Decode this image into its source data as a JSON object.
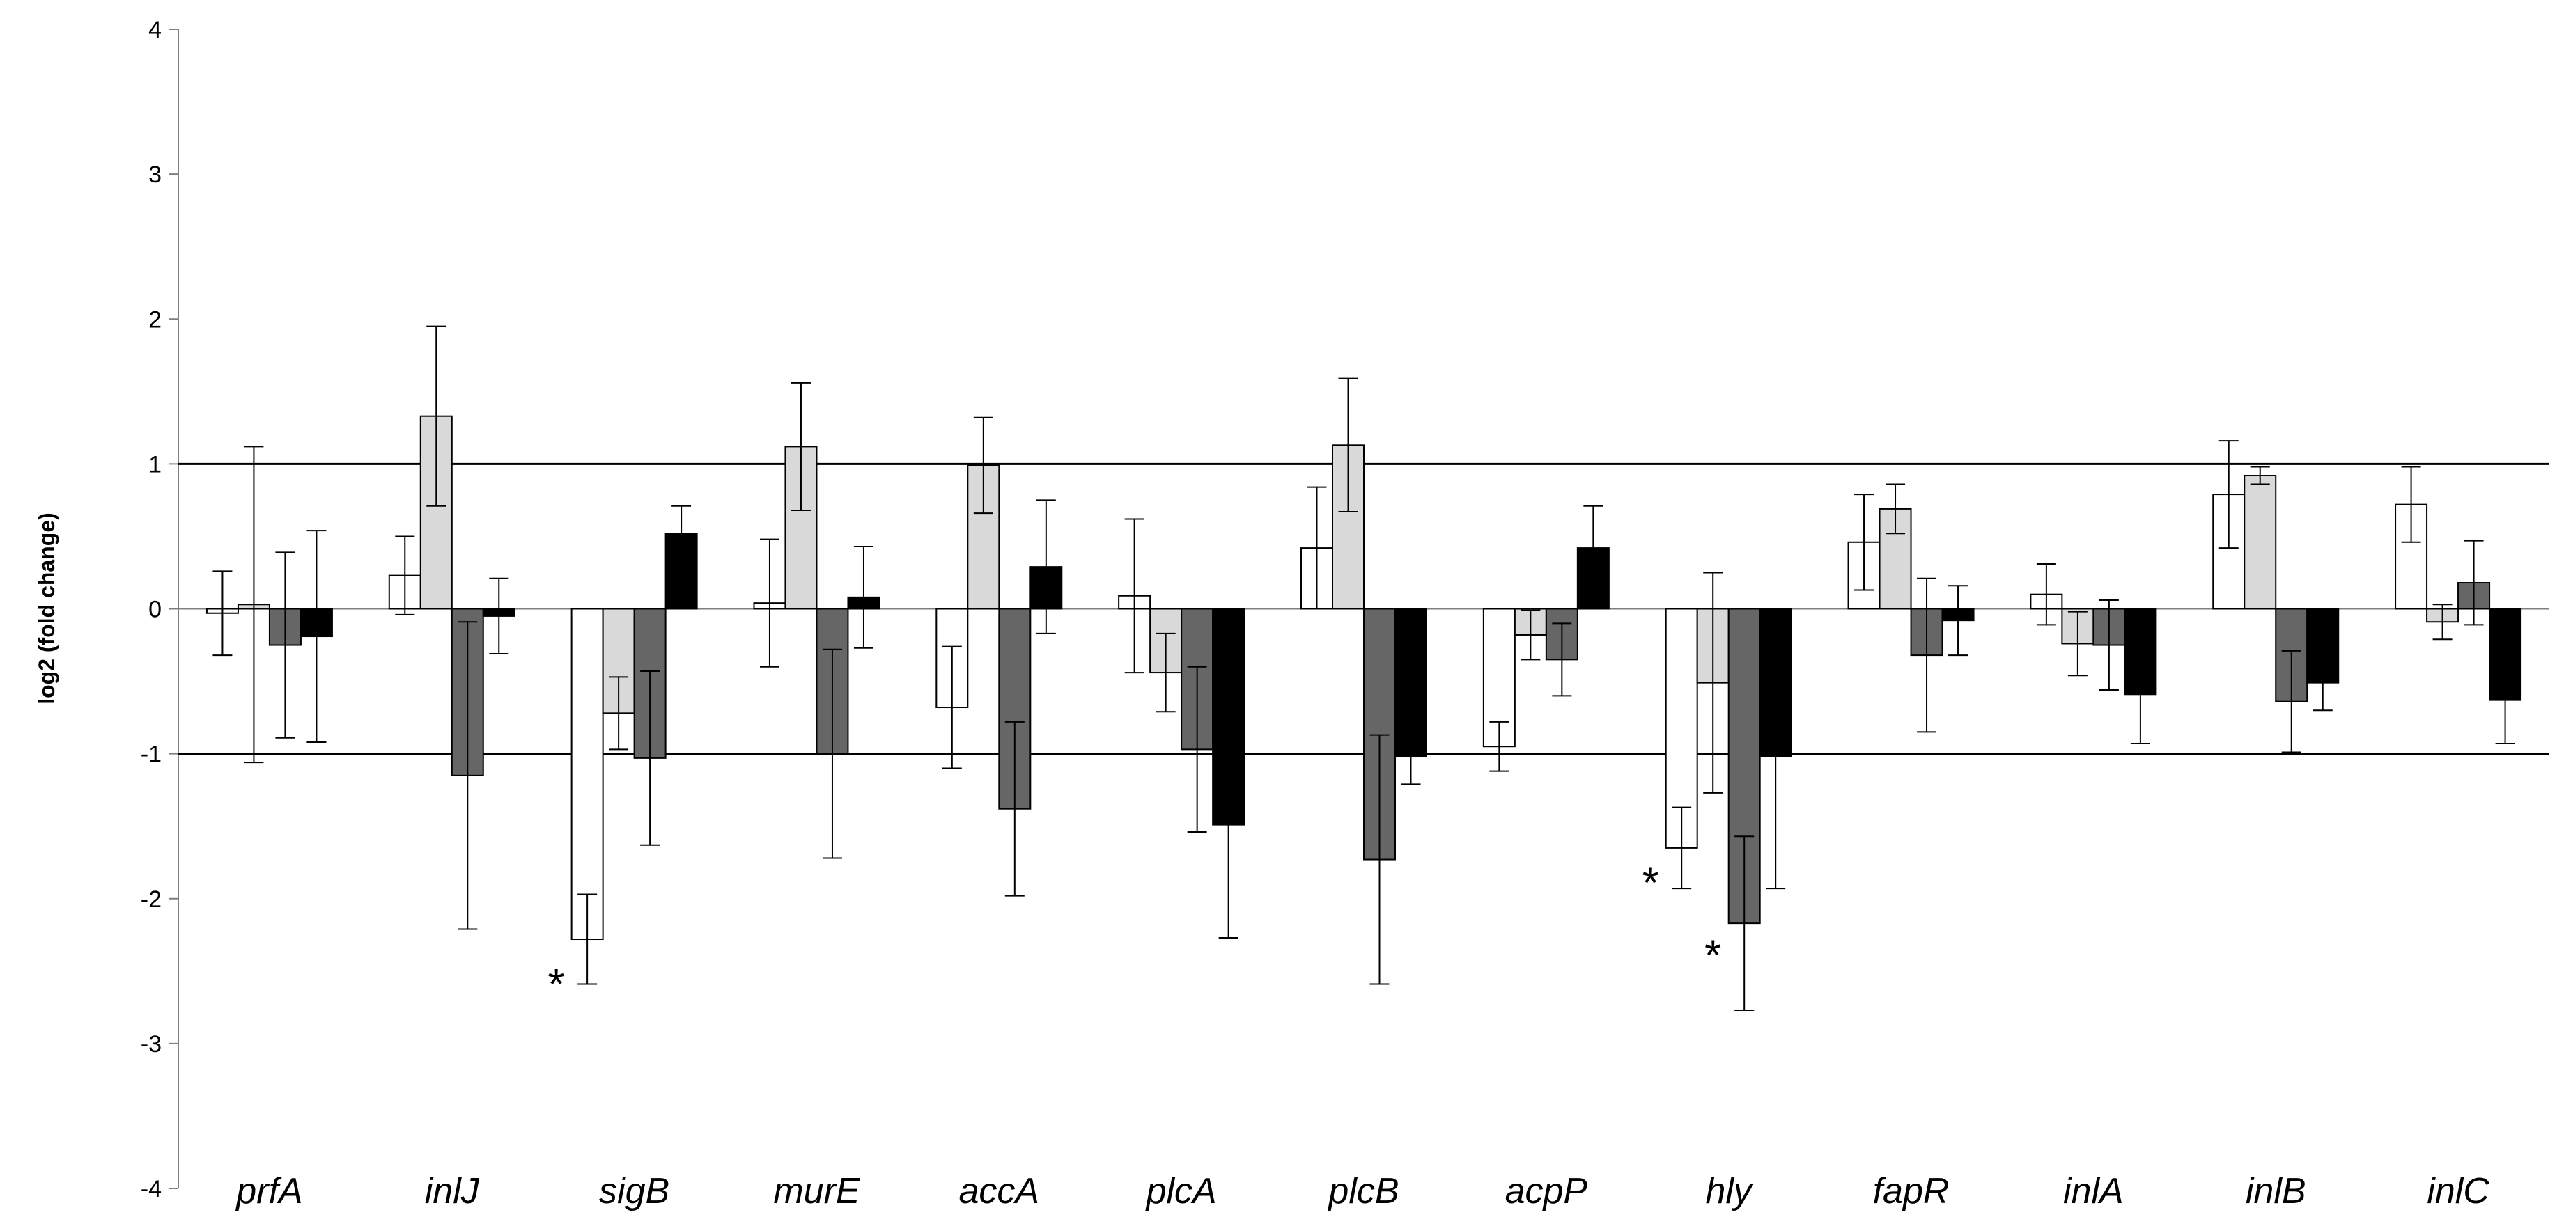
{
  "chart_data": {
    "type": "bar",
    "title": "",
    "xlabel": "",
    "ylabel": "log2 (fold change)",
    "ylim": [
      -4,
      4
    ],
    "yticks": [
      "4",
      "3",
      "2",
      "1",
      "0",
      "-1",
      "-2",
      "-3",
      "-4"
    ],
    "reference_lines": [
      1,
      -1
    ],
    "categories": [
      "prfA",
      "inlJ",
      "sigB",
      "murE",
      "accA",
      "plcA",
      "plcB",
      "acpP",
      "hly",
      "fapR",
      "inlA",
      "inlB",
      "inlC"
    ],
    "series": [
      {
        "name": "series-1",
        "fill": "#ffffff",
        "values": [
          -0.03,
          0.23,
          -2.28,
          0.04,
          -0.68,
          0.09,
          0.42,
          -0.95,
          -1.65,
          0.46,
          0.1,
          0.79,
          0.72
        ],
        "errors": [
          0.29,
          0.27,
          0.31,
          0.44,
          0.42,
          0.53,
          0.42,
          0.17,
          0.28,
          0.33,
          0.21,
          0.37,
          0.26
        ]
      },
      {
        "name": "series-2",
        "fill": "#d9d9d9",
        "values": [
          0.03,
          1.33,
          -0.72,
          1.12,
          0.99,
          -0.44,
          1.13,
          -0.18,
          -0.51,
          0.69,
          -0.24,
          0.92,
          -0.09
        ],
        "errors": [
          1.09,
          0.62,
          0.25,
          0.44,
          0.33,
          0.27,
          0.46,
          0.17,
          0.76,
          0.17,
          0.22,
          0.06,
          0.12
        ]
      },
      {
        "name": "series-3",
        "fill": "#666666",
        "values": [
          -0.25,
          -1.15,
          -1.03,
          -1.0,
          -1.38,
          -0.97,
          -1.73,
          -0.35,
          -2.17,
          -0.32,
          -0.25,
          -0.64,
          0.18
        ],
        "errors": [
          0.64,
          1.06,
          0.6,
          0.72,
          0.6,
          0.57,
          0.86,
          0.25,
          0.6,
          0.53,
          0.31,
          0.35,
          0.29
        ]
      },
      {
        "name": "series-4",
        "fill": "#000000",
        "values": [
          -0.19,
          -0.05,
          0.52,
          0.08,
          0.29,
          -1.49,
          -1.02,
          0.42,
          -1.02,
          -0.08,
          -0.59,
          -0.51,
          -0.63
        ],
        "errors": [
          0.73,
          0.26,
          0.19,
          0.35,
          0.46,
          0.78,
          0.19,
          0.29,
          0.91,
          0.24,
          0.34,
          0.19,
          0.3
        ]
      }
    ],
    "annotations": [
      {
        "text": "*",
        "category": "sigB",
        "value": -2.55,
        "side": "left"
      },
      {
        "text": "*",
        "category": "hly",
        "value": -1.85,
        "side": "left"
      },
      {
        "text": "*",
        "category": "hly",
        "value": -2.35,
        "side": "middle"
      }
    ],
    "grid": false,
    "legend": "none"
  }
}
